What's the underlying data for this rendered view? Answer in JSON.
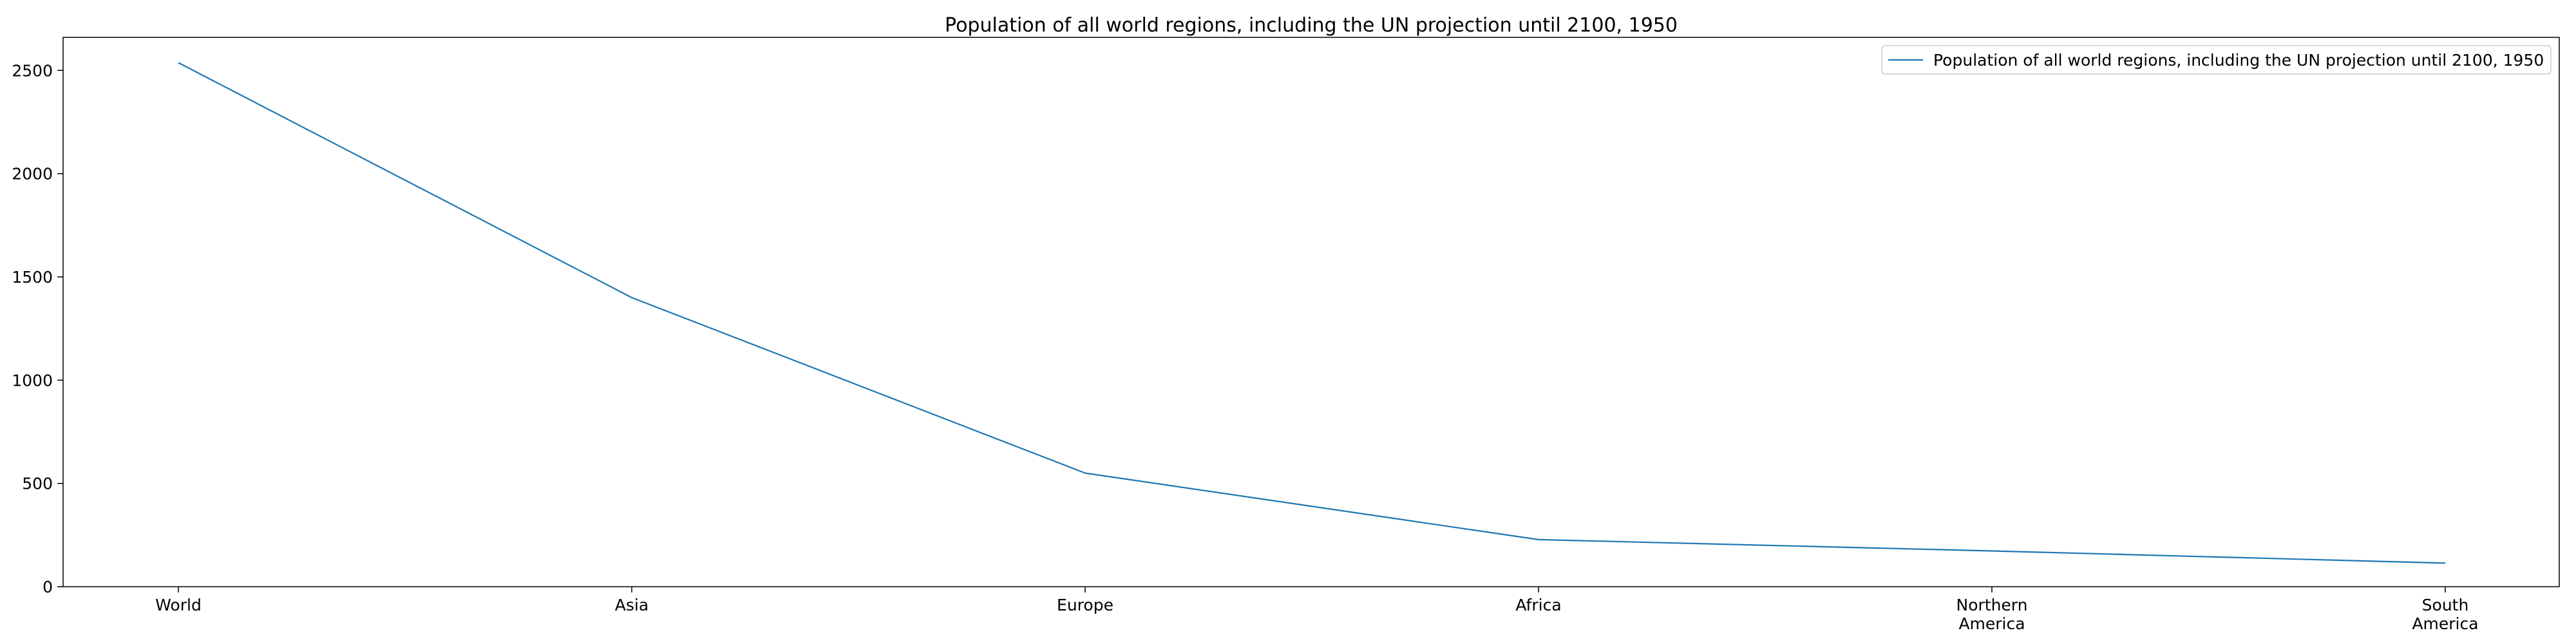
{
  "chart_data": {
    "type": "line",
    "title": "Population of all world regions, including the UN projection until 2100, 1950",
    "xlabel": "",
    "ylabel": "",
    "categories": [
      "World",
      "Asia",
      "Europe",
      "Africa",
      "Northern America",
      "South America"
    ],
    "series": [
      {
        "name": "Population of all world regions, including the UN projection until 2100, 1950",
        "values": [
          2537,
          1400,
          550,
          228,
          173,
          114
        ],
        "color": "#1f77b4"
      }
    ],
    "ylim": [
      0,
      2660
    ],
    "yticks": [
      0,
      500,
      1000,
      1500,
      2000,
      2500
    ],
    "legend_position": "top-right",
    "grid": false
  }
}
